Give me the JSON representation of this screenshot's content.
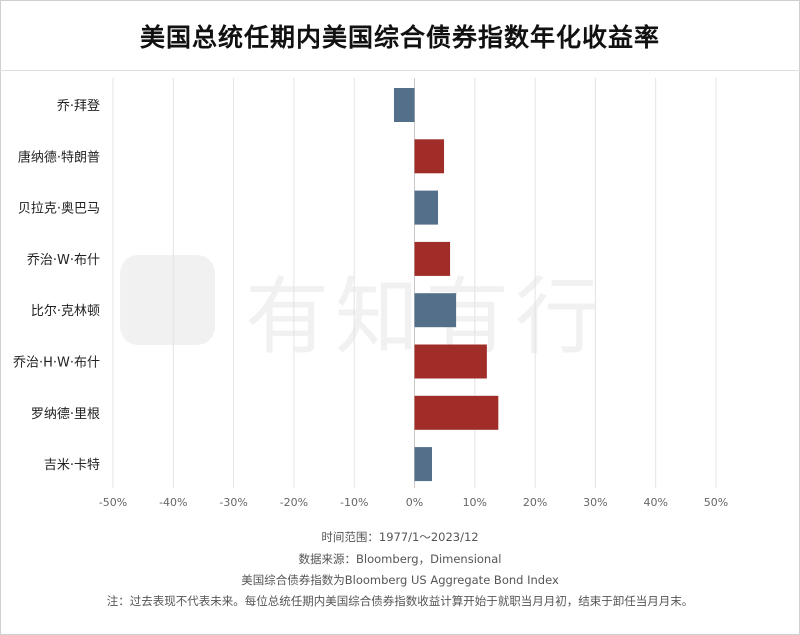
{
  "chart_data": {
    "type": "bar",
    "orientation": "horizontal",
    "title": "美国总统任期内美国综合债券指数年化收益率",
    "categories": [
      "乔·拜登",
      "唐纳德·特朗普",
      "贝拉克·奥巴马",
      "乔治·W·布什",
      "比尔·克林顿",
      "乔治·H·W·布什",
      "罗纳德·里根",
      "吉米·卡特"
    ],
    "values": [
      -3.4,
      4.9,
      3.9,
      5.9,
      6.9,
      12.0,
      13.9,
      2.9
    ],
    "bar_colors": [
      "#546f8a",
      "#a02d27",
      "#546f8a",
      "#a02d27",
      "#546f8a",
      "#a02d27",
      "#a02d27",
      "#546f8a"
    ],
    "xlim": [
      -50,
      50
    ],
    "xticks": [
      -50,
      -40,
      -30,
      -20,
      -10,
      0,
      10,
      20,
      30,
      40,
      50
    ],
    "xtick_labels": [
      "-50%",
      "-40%",
      "-30%",
      "-20%",
      "-10%",
      "0%",
      "10%",
      "20%",
      "30%",
      "40%",
      "50%"
    ],
    "grid": true,
    "legend": "none"
  },
  "footer": {
    "time_range": "时间范围：1977/1～2023/12",
    "source": "数据来源：Bloomberg，Dimensional",
    "index_note": "美国综合债券指数为Bloomberg US Aggregate Bond Index",
    "disclaimer": "注：过去表现不代表未来。每位总统任期内美国综合债券指数收益计算开始于就职当月月初，结束于卸任当月月末。"
  },
  "watermark": {
    "text": "有知有行"
  }
}
